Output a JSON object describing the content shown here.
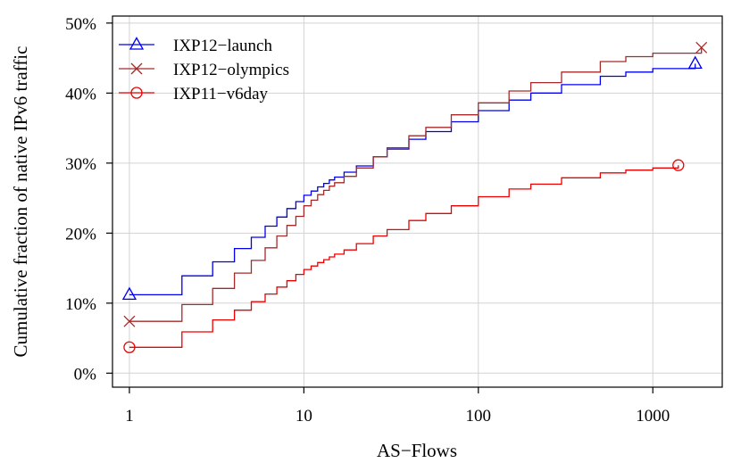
{
  "chart_data": {
    "type": "line",
    "xlabel": "AS−Flows",
    "ylabel": "Cumulative fraction of native IPv6 traffic",
    "x_scale": "log",
    "xlim": [
      0.8,
      2500
    ],
    "ylim": [
      -2,
      51
    ],
    "x_ticks": [
      {
        "value": 1,
        "label": "1"
      },
      {
        "value": 10,
        "label": "10"
      },
      {
        "value": 100,
        "label": "100"
      },
      {
        "value": 1000,
        "label": "1000"
      }
    ],
    "y_ticks": [
      {
        "value": 0,
        "label": "0%"
      },
      {
        "value": 10,
        "label": "10%"
      },
      {
        "value": 20,
        "label": "20%"
      },
      {
        "value": 30,
        "label": "30%"
      },
      {
        "value": 40,
        "label": "40%"
      },
      {
        "value": 50,
        "label": "50%"
      }
    ],
    "grid": true,
    "legend_position": "top-left",
    "series": [
      {
        "name": "IXP12−launch",
        "color": "#0000ee",
        "marker": "triangle",
        "values": [
          [
            1,
            11.2
          ],
          [
            2,
            13.9
          ],
          [
            3,
            15.9
          ],
          [
            4,
            17.8
          ],
          [
            5,
            19.4
          ],
          [
            6,
            21.0
          ],
          [
            7,
            22.3
          ],
          [
            8,
            23.5
          ],
          [
            9,
            24.5
          ],
          [
            10,
            25.4
          ],
          [
            11,
            26.0
          ],
          [
            12,
            26.6
          ],
          [
            13,
            27.1
          ],
          [
            14,
            27.6
          ],
          [
            15,
            28.0
          ],
          [
            17,
            28.7
          ],
          [
            20,
            29.6
          ],
          [
            25,
            30.9
          ],
          [
            30,
            32.0
          ],
          [
            40,
            33.4
          ],
          [
            50,
            34.5
          ],
          [
            70,
            35.9
          ],
          [
            100,
            37.5
          ],
          [
            150,
            39.0
          ],
          [
            200,
            40.0
          ],
          [
            300,
            41.2
          ],
          [
            500,
            42.4
          ],
          [
            700,
            43.0
          ],
          [
            1000,
            43.5
          ],
          [
            1750,
            44.2
          ]
        ],
        "markers": [
          [
            1,
            11.2
          ],
          [
            1750,
            44.2
          ]
        ]
      },
      {
        "name": "IXP12−olympics",
        "color": "#a52a2a",
        "marker": "x",
        "values": [
          [
            1,
            7.4
          ],
          [
            2,
            9.8
          ],
          [
            3,
            12.1
          ],
          [
            4,
            14.3
          ],
          [
            5,
            16.1
          ],
          [
            6,
            17.9
          ],
          [
            7,
            19.6
          ],
          [
            8,
            21.1
          ],
          [
            9,
            22.4
          ],
          [
            10,
            23.9
          ],
          [
            11,
            24.7
          ],
          [
            12,
            25.5
          ],
          [
            13,
            26.1
          ],
          [
            14,
            26.7
          ],
          [
            15,
            27.2
          ],
          [
            17,
            28.1
          ],
          [
            20,
            29.3
          ],
          [
            25,
            30.9
          ],
          [
            30,
            32.2
          ],
          [
            40,
            33.9
          ],
          [
            50,
            35.1
          ],
          [
            70,
            36.9
          ],
          [
            100,
            38.6
          ],
          [
            150,
            40.3
          ],
          [
            200,
            41.5
          ],
          [
            300,
            43.0
          ],
          [
            500,
            44.5
          ],
          [
            700,
            45.2
          ],
          [
            1000,
            45.7
          ],
          [
            1900,
            46.5
          ]
        ],
        "markers": [
          [
            1,
            7.4
          ],
          [
            1900,
            46.5
          ]
        ]
      },
      {
        "name": "IXP11−v6day",
        "color": "#ee0000",
        "marker": "circle",
        "values": [
          [
            1,
            3.7
          ],
          [
            2,
            5.9
          ],
          [
            3,
            7.6
          ],
          [
            4,
            9.0
          ],
          [
            5,
            10.2
          ],
          [
            6,
            11.3
          ],
          [
            7,
            12.3
          ],
          [
            8,
            13.2
          ],
          [
            9,
            14.1
          ],
          [
            10,
            14.8
          ],
          [
            11,
            15.3
          ],
          [
            12,
            15.8
          ],
          [
            13,
            16.2
          ],
          [
            14,
            16.6
          ],
          [
            15,
            17.0
          ],
          [
            17,
            17.6
          ],
          [
            20,
            18.5
          ],
          [
            25,
            19.6
          ],
          [
            30,
            20.5
          ],
          [
            40,
            21.8
          ],
          [
            50,
            22.8
          ],
          [
            70,
            23.9
          ],
          [
            100,
            25.2
          ],
          [
            150,
            26.3
          ],
          [
            200,
            27.0
          ],
          [
            300,
            27.9
          ],
          [
            500,
            28.6
          ],
          [
            700,
            29.0
          ],
          [
            1000,
            29.3
          ],
          [
            1400,
            29.7
          ]
        ],
        "markers": [
          [
            1,
            3.7
          ],
          [
            1400,
            29.7
          ]
        ]
      }
    ]
  }
}
